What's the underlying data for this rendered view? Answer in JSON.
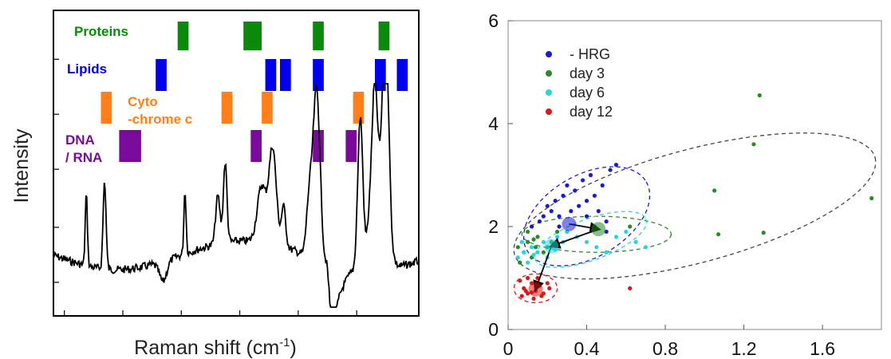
{
  "chart_data": [
    {
      "type": "line",
      "xlabel_main": "Raman shift (cm",
      "xlabel_sup": "-1",
      "xlabel_close": ")",
      "ylabel": "Intensity",
      "band_groups": [
        {
          "name": "Proteins",
          "color": "#0a8a0a",
          "bands": [
            [
              0.34,
              0.37
            ],
            [
              0.52,
              0.57
            ],
            [
              0.71,
              0.74
            ],
            [
              0.89,
              0.92
            ]
          ]
        },
        {
          "name": "Lipids",
          "color": "#0000ee",
          "bands": [
            [
              0.28,
              0.31
            ],
            [
              0.58,
              0.61
            ],
            [
              0.62,
              0.65
            ],
            [
              0.71,
              0.74
            ],
            [
              0.88,
              0.91
            ],
            [
              0.94,
              0.97
            ]
          ]
        },
        {
          "name_lines": [
            "Cyto",
            "-chrome c"
          ],
          "color": "#ff7f1a",
          "bands": [
            [
              0.13,
              0.16
            ],
            [
              0.46,
              0.49
            ],
            [
              0.57,
              0.6
            ],
            [
              0.82,
              0.85
            ]
          ]
        },
        {
          "name_lines": [
            "DNA",
            "/ RNA"
          ],
          "color": "#7a0a9a",
          "bands": [
            [
              0.18,
              0.24
            ],
            [
              0.54,
              0.57
            ],
            [
              0.71,
              0.74
            ],
            [
              0.8,
              0.83
            ]
          ]
        }
      ]
    },
    {
      "type": "scatter",
      "xlim": [
        0,
        1.9
      ],
      "ylim": [
        0,
        6
      ],
      "xticks": [
        "0",
        "0.4",
        "0.8",
        "1.2",
        "1.6"
      ],
      "yticks": [
        "0",
        "2",
        "4",
        "6"
      ],
      "legend_position": "top-left",
      "series": [
        {
          "name": "- HRG",
          "color": "#1a1ad4",
          "points": [
            [
              0.12,
              2.0
            ],
            [
              0.16,
              2.1
            ],
            [
              0.18,
              2.2
            ],
            [
              0.2,
              2.4
            ],
            [
              0.22,
              2.3
            ],
            [
              0.24,
              2.5
            ],
            [
              0.26,
              2.2
            ],
            [
              0.28,
              2.6
            ],
            [
              0.3,
              2.8
            ],
            [
              0.32,
              2.3
            ],
            [
              0.34,
              2.7
            ],
            [
              0.36,
              2.4
            ],
            [
              0.38,
              2.9
            ],
            [
              0.4,
              2.5
            ],
            [
              0.42,
              3.0
            ],
            [
              0.44,
              2.6
            ],
            [
              0.46,
              2.3
            ],
            [
              0.48,
              2.8
            ],
            [
              0.5,
              2.1
            ],
            [
              0.52,
              3.1
            ],
            [
              0.55,
              3.2
            ],
            [
              0.3,
              1.9
            ],
            [
              0.26,
              2.0
            ],
            [
              0.4,
              2.2
            ],
            [
              0.44,
              2.0
            ],
            [
              0.5,
              1.9
            ]
          ],
          "centroid": [
            0.31,
            2.05
          ]
        },
        {
          "name": "day 3",
          "color": "#2a8a2a",
          "points": [
            [
              0.05,
              1.6
            ],
            [
              0.08,
              1.5
            ],
            [
              0.1,
              1.7
            ],
            [
              0.12,
              1.4
            ],
            [
              0.15,
              1.8
            ],
            [
              0.18,
              1.5
            ],
            [
              0.2,
              1.6
            ],
            [
              0.22,
              1.7
            ],
            [
              0.25,
              1.9
            ],
            [
              0.1,
              1.9
            ],
            [
              0.06,
              1.3
            ],
            [
              0.14,
              1.6
            ],
            [
              1.05,
              2.7
            ],
            [
              1.07,
              1.85
            ],
            [
              1.3,
              1.88
            ],
            [
              1.25,
              3.6
            ],
            [
              1.28,
              4.55
            ],
            [
              1.85,
              2.55
            ],
            [
              0.62,
              2.0
            ],
            [
              0.13,
              1.75
            ]
          ],
          "centroid": [
            0.46,
            1.95
          ]
        },
        {
          "name": "day 6",
          "color": "#22d8e0",
          "points": [
            [
              0.05,
              1.4
            ],
            [
              0.08,
              1.5
            ],
            [
              0.1,
              1.3
            ],
            [
              0.12,
              1.6
            ],
            [
              0.15,
              1.5
            ],
            [
              0.18,
              1.7
            ],
            [
              0.2,
              1.4
            ],
            [
              0.22,
              1.6
            ],
            [
              0.25,
              1.8
            ],
            [
              0.28,
              1.7
            ],
            [
              0.3,
              1.9
            ],
            [
              0.35,
              1.8
            ],
            [
              0.4,
              1.7
            ],
            [
              0.45,
              1.6
            ],
            [
              0.5,
              1.5
            ],
            [
              0.55,
              1.8
            ],
            [
              0.6,
              1.9
            ],
            [
              0.65,
              1.7
            ],
            [
              0.7,
              1.6
            ],
            [
              0.07,
              1.7
            ],
            [
              0.13,
              1.45
            ],
            [
              0.24,
              1.55
            ]
          ],
          "centroid": [
            0.22,
            1.62
          ]
        },
        {
          "name": "day 12",
          "color": "#e01515",
          "points": [
            [
              0.06,
              0.95
            ],
            [
              0.08,
              0.8
            ],
            [
              0.1,
              0.7
            ],
            [
              0.12,
              0.9
            ],
            [
              0.14,
              0.75
            ],
            [
              0.16,
              0.85
            ],
            [
              0.18,
              0.7
            ],
            [
              0.2,
              0.9
            ],
            [
              0.1,
              1.0
            ],
            [
              0.13,
              0.6
            ],
            [
              0.17,
              0.65
            ],
            [
              0.09,
              0.75
            ],
            [
              0.15,
              1.0
            ],
            [
              0.21,
              0.8
            ],
            [
              0.07,
              0.65
            ],
            [
              0.12,
              0.72
            ],
            [
              0.62,
              0.8
            ]
          ],
          "centroid": [
            0.14,
            0.78
          ]
        }
      ],
      "ellipses": [
        {
          "color": "#1a1ad4",
          "center": [
            0.4,
            2.2
          ],
          "rx": 0.35,
          "ry": 0.8,
          "rotate": -30
        },
        {
          "color": "#2a8a2a",
          "center": [
            0.45,
            1.85
          ],
          "rx": 0.38,
          "ry": 0.35,
          "rotate": 0
        },
        {
          "color": "#22d8e0",
          "center": [
            0.42,
            1.75
          ],
          "rx": 0.3,
          "ry": 0.4,
          "rotate": -20
        },
        {
          "color": "#444444",
          "center": [
            0.95,
            2.4
          ],
          "rx": 0.95,
          "ry": 1.1,
          "rotate": -15
        },
        {
          "color": "#e01515",
          "center": [
            0.14,
            0.8
          ],
          "rx": 0.11,
          "ry": 0.28,
          "rotate": 0
        }
      ],
      "arrows": [
        [
          [
            0.31,
            2.05
          ],
          [
            0.46,
            1.95
          ]
        ],
        [
          [
            0.46,
            1.95
          ],
          [
            0.22,
            1.62
          ]
        ],
        [
          [
            0.22,
            1.62
          ],
          [
            0.14,
            0.78
          ]
        ]
      ]
    }
  ]
}
